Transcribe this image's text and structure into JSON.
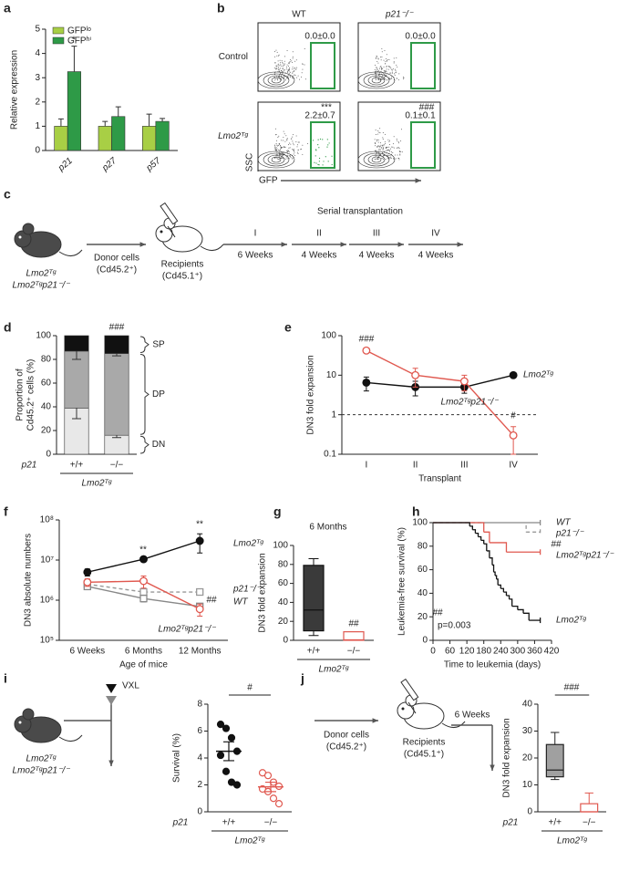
{
  "panel_labels": [
    "a",
    "b",
    "c",
    "d",
    "e",
    "f",
    "g",
    "h",
    "i",
    "j"
  ],
  "flow": {
    "columns": [
      "WT",
      "p21⁻/⁻"
    ],
    "rows": [
      "Control",
      "Lmo2ᵀᵍ"
    ],
    "gates": [
      [
        "0.0±0.0",
        "0.0±0.0"
      ],
      [
        "2.2±0.7",
        "0.1±0.1"
      ]
    ],
    "significance": [
      "***",
      "###"
    ],
    "y_label": "SSC",
    "x_label": "GFP"
  },
  "schema_c": {
    "mice": [
      "Lmo2ᵀᵍ",
      "Lmo2ᵀᵍp21⁻/⁻"
    ],
    "donor": [
      "Donor cells",
      "(Cd45.2⁺)"
    ],
    "recipients": [
      "Recipients",
      "(Cd45.1⁺)"
    ],
    "title": "Serial transplantation",
    "steps": [
      {
        "label": "I",
        "duration": "6 Weeks"
      },
      {
        "label": "II",
        "duration": "4 Weeks"
      },
      {
        "label": "III",
        "duration": "4 Weeks"
      },
      {
        "label": "IV",
        "duration": "4 Weeks"
      }
    ]
  },
  "schema_i": {
    "treatment": "VXL",
    "mice": [
      "Lmo2ᵀᵍ",
      "Lmo2ᵀᵍp21⁻/⁻"
    ]
  },
  "schema_j": {
    "donor": [
      "Donor cells",
      "(Cd45.2⁺)"
    ],
    "recipients": [
      "Recipients",
      "(Cd45.1⁺)"
    ],
    "duration": "6 Weeks"
  },
  "chart_data": [
    {
      "type": "bar",
      "y_label": "Relative expression",
      "categories": [
        "p21",
        "p27",
        "p57"
      ],
      "series": [
        {
          "name": "GFPˡᵒ",
          "color": "#a8cf45",
          "values": [
            1,
            1,
            1
          ],
          "errors": [
            0.3,
            0.2,
            0.5
          ]
        },
        {
          "name": "GFPʰⁱ",
          "color": "#2e9a47",
          "values": [
            3.25,
            1.4,
            1.2
          ],
          "errors": [
            1.05,
            0.4,
            0.12
          ]
        }
      ],
      "ylim": [
        0,
        5
      ],
      "yticks": [
        0,
        1,
        2,
        3,
        4,
        5
      ],
      "annotations": [
        "*"
      ]
    },
    {
      "type": "stacked_bar",
      "y_label": [
        "Proportion of",
        "Cd45.2⁺ cells (%)"
      ],
      "x_label": "p21",
      "group_label": "Lmo2ᵀᵍ",
      "categories": [
        "+/+",
        "−/−"
      ],
      "series": [
        {
          "name": "DN",
          "color": "#e8e8e8",
          "values": [
            39,
            16
          ],
          "errors": [
            9,
            2
          ]
        },
        {
          "name": "DP",
          "color": "#a9a9a9",
          "values": [
            48,
            69
          ],
          "errors": [
            7,
            2
          ]
        },
        {
          "name": "SP",
          "color": "#111111",
          "values": [
            13,
            15
          ]
        }
      ],
      "ylim": [
        0,
        100
      ],
      "yticks": [
        0,
        20,
        40,
        60,
        80,
        100
      ],
      "annotations": [
        "###"
      ]
    },
    {
      "type": "line",
      "y_label": "DN3 fold expansion",
      "x_label": "Transplant",
      "log_y": true,
      "categories": [
        "I",
        "II",
        "III",
        "IV"
      ],
      "series": [
        {
          "name": "Lmo2ᵀᵍ",
          "color": "#111111",
          "marker": "circle",
          "filled": true,
          "values": [
            6.5,
            5,
            5,
            10
          ],
          "errors": [
            2.5,
            2,
            1.5,
            0.8
          ]
        },
        {
          "name": "Lmo2ᵀᵍp21⁻/⁻",
          "color": "#e0584f",
          "marker": "circle",
          "filled": false,
          "values": [
            42,
            10,
            7,
            0.3
          ],
          "errors": [
            5,
            5,
            3,
            0.2
          ]
        }
      ],
      "ylim": [
        0.1,
        100
      ],
      "yticks": [
        0.1,
        1,
        10,
        100
      ],
      "reference_line": 1,
      "annotations": [
        "###",
        "#"
      ]
    },
    {
      "type": "line",
      "y_label": "DN3 absolute numbers",
      "x_label": "Age of mice",
      "log_y": true,
      "categories": [
        "6 Weeks",
        "6 Months",
        "12 Months"
      ],
      "series": [
        {
          "name": "Lmo2ᵀᵍ",
          "color": "#111111",
          "marker": "circle",
          "filled": true,
          "values": [
            5000000,
            10500000,
            30000000
          ],
          "errors": [
            1000000,
            1500000,
            15000000
          ]
        },
        {
          "name": "p21⁻/⁻",
          "color": "#999999",
          "marker": "square",
          "filled": false,
          "dashed": true,
          "values": [
            2500000,
            1600000,
            1600000
          ],
          "errors": [
            300000,
            300000,
            200000
          ]
        },
        {
          "name": "WT",
          "color": "#888888",
          "marker": "square",
          "filled": false,
          "values": [
            2200000,
            1100000,
            700000
          ],
          "errors": [
            300000,
            200000,
            100000
          ]
        },
        {
          "name": "Lmo2ᵀᵍp21⁻/⁻",
          "color": "#e0584f",
          "marker": "circle",
          "filled": false,
          "values": [
            2800000,
            3000000,
            600000
          ],
          "errors": [
            600000,
            1000000,
            200000
          ]
        }
      ],
      "ylim": [
        100000,
        100000000
      ],
      "yticks": [
        {
          "value": 100000,
          "label": "10⁵"
        },
        {
          "value": 1000000,
          "label": "10⁶"
        },
        {
          "value": 10000000,
          "label": "10⁷"
        },
        {
          "value": 100000000,
          "label": "10⁸"
        }
      ],
      "annotations": [
        "**",
        "**",
        "##"
      ]
    },
    {
      "type": "box",
      "title": "6 Months",
      "y_label": "DN3 fold expansion",
      "group_label": "Lmo2ᵀᵍ",
      "categories": [
        "+/+",
        "−/−"
      ],
      "colors": [
        "#111111",
        "#e0584f"
      ],
      "fills": [
        "#3a3a3a",
        "#ffffff"
      ],
      "boxes": [
        {
          "min": 5,
          "q1": 10,
          "median": 32,
          "q3": 79,
          "max": 86
        },
        {
          "min": 0,
          "q1": 0,
          "median": 0.5,
          "q3": 9,
          "max": 9
        }
      ],
      "ylim": [
        0,
        100
      ],
      "yticks": [
        0,
        20,
        40,
        60,
        80,
        100
      ],
      "annotations": [
        "##"
      ]
    },
    {
      "type": "step",
      "y_label": "Leukemia-free survival (%)",
      "x_label": "Time to leukemia (days)",
      "series": [
        {
          "name": "WT",
          "color": "#888888",
          "x": [
            0,
            380
          ],
          "y": [
            100,
            100
          ]
        },
        {
          "name": "p21⁻/⁻",
          "color": "#999999",
          "dashed": true,
          "x": [
            0,
            330,
            380
          ],
          "y": [
            100,
            92,
            92
          ]
        },
        {
          "name": "Lmo2ᵀᵍp21⁻/⁻",
          "color": "#e0584f",
          "x": [
            0,
            180,
            200,
            260,
            380
          ],
          "y": [
            100,
            92,
            83,
            75,
            75
          ]
        },
        {
          "name": "Lmo2ᵀᵍ",
          "color": "#111111",
          "x": [
            0,
            130,
            140,
            150,
            160,
            170,
            180,
            190,
            200,
            210,
            215,
            220,
            225,
            230,
            240,
            250,
            260,
            270,
            280,
            300,
            320,
            340,
            380
          ],
          "y": [
            100,
            97,
            94,
            91,
            88,
            85,
            82,
            76,
            70,
            64,
            58,
            55,
            52,
            47,
            44,
            41,
            38,
            35,
            29,
            26,
            23,
            17,
            17
          ]
        }
      ],
      "xlim": [
        0,
        420
      ],
      "xticks": [
        0,
        60,
        120,
        180,
        240,
        300,
        360,
        420
      ],
      "ylim": [
        0,
        100
      ],
      "yticks": [
        0,
        20,
        40,
        60,
        80,
        100
      ],
      "annotations": [
        "##",
        "##",
        "p=0.003"
      ]
    },
    {
      "type": "dot",
      "y_label": "Survival (%)",
      "x_label": "p21",
      "group_label": "Lmo2ᵀᵍ",
      "categories": [
        "+/+",
        "−/−"
      ],
      "colors": [
        "#111111",
        "#e0584f"
      ],
      "filled": [
        true,
        false
      ],
      "points": [
        [
          6.5,
          6.2,
          5.5,
          4.5,
          4.2,
          3.0,
          2.2,
          2.0
        ],
        [
          2.9,
          2.7,
          2.2,
          1.9,
          1.7,
          1.5,
          1.0,
          0.6
        ]
      ],
      "mean": [
        4.5,
        1.85
      ],
      "sem": [
        0.7,
        0.35
      ],
      "ylim": [
        0,
        8
      ],
      "yticks": [
        0,
        2,
        4,
        6,
        8
      ],
      "annotations": [
        "#"
      ]
    },
    {
      "type": "box",
      "y_label": "DN3 fold expansion",
      "x_label": "p21",
      "group_label": "Lmo2ᵀᵍ",
      "categories": [
        "+/+",
        "−/−"
      ],
      "colors": [
        "#222222",
        "#e0584f"
      ],
      "fills": [
        "#a0a0a0",
        "#ffffff"
      ],
      "boxes": [
        {
          "min": 12,
          "q1": 13,
          "median": 15.5,
          "q3": 25,
          "max": 29.5
        },
        {
          "min": 0,
          "q1": 0,
          "median": 0,
          "q3": 3,
          "max": 7
        }
      ],
      "ylim": [
        0,
        40
      ],
      "yticks": [
        0,
        10,
        20,
        30,
        40
      ],
      "annotations": [
        "###"
      ]
    }
  ]
}
